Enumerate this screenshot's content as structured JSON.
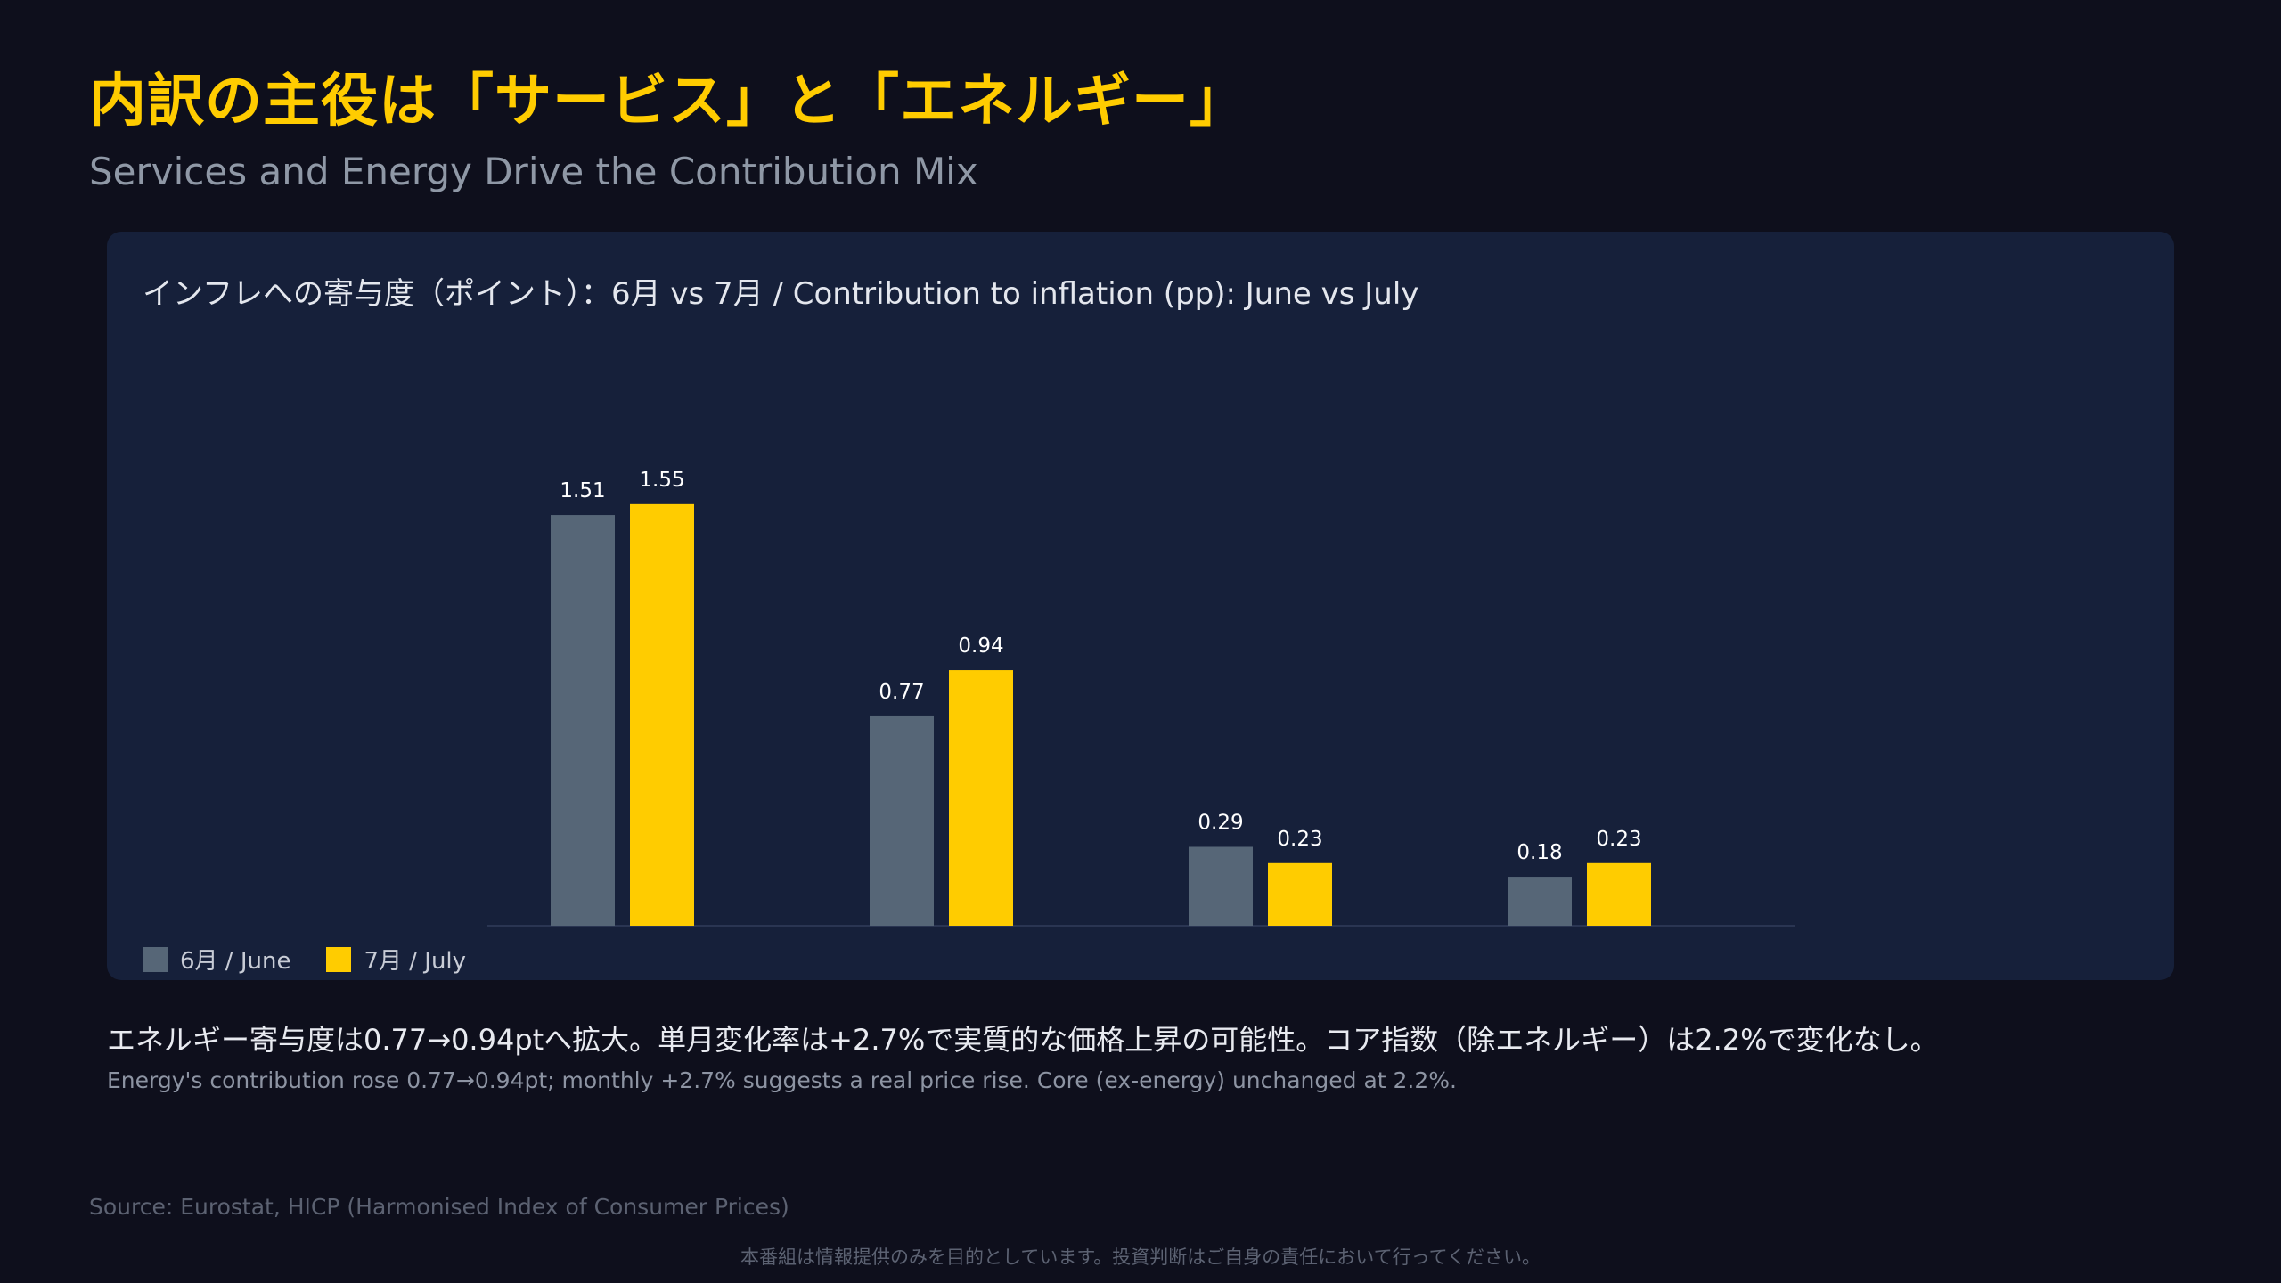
{
  "header": {
    "title": "内訳の主役は「サービス」と「エネルギー」",
    "subtitle": "Services and Energy Drive the Contribution Mix"
  },
  "chart_data": {
    "type": "bar",
    "title": "インフレへの寄与度（ポイント）：6月 vs 7月 / Contribution to inflation (pp): June vs July",
    "categories": [
      "",
      "",
      "",
      ""
    ],
    "series": [
      {
        "name": "6月 / June",
        "values": [
          1.51,
          0.77,
          0.29,
          0.18
        ],
        "color": "#566677"
      },
      {
        "name": "7月 / July",
        "values": [
          1.55,
          0.94,
          0.23,
          0.23
        ],
        "color": "#ffcc00"
      }
    ],
    "ylim": [
      0,
      1.9
    ],
    "grid": false,
    "legend_position": "bottom-left",
    "data_labels": true
  },
  "legend": {
    "june_label": "6月 / June",
    "july_label": "7月 / July"
  },
  "notes": {
    "ja": "エネルギー寄与度は0.77→0.94ptへ拡大。単月変化率は+2.7%で実質的な価格上昇の可能性。コア指数（除エネルギー）は2.2%で変化なし。",
    "en": "Energy's contribution rose 0.77→0.94pt; monthly +2.7% suggests a real price rise. Core (ex-energy) unchanged at 2.2%."
  },
  "footer": {
    "source": "Source: Eurostat, HICP (Harmonised Index of Consumer Prices)",
    "disclaimer": "本番組は情報提供のみを目的としています。投資判断はご自身の責任において行ってください。"
  },
  "colors": {
    "background": "#0e0f1c",
    "panel": "#16203a",
    "accent": "#ffcc00",
    "june_bar": "#566677"
  }
}
